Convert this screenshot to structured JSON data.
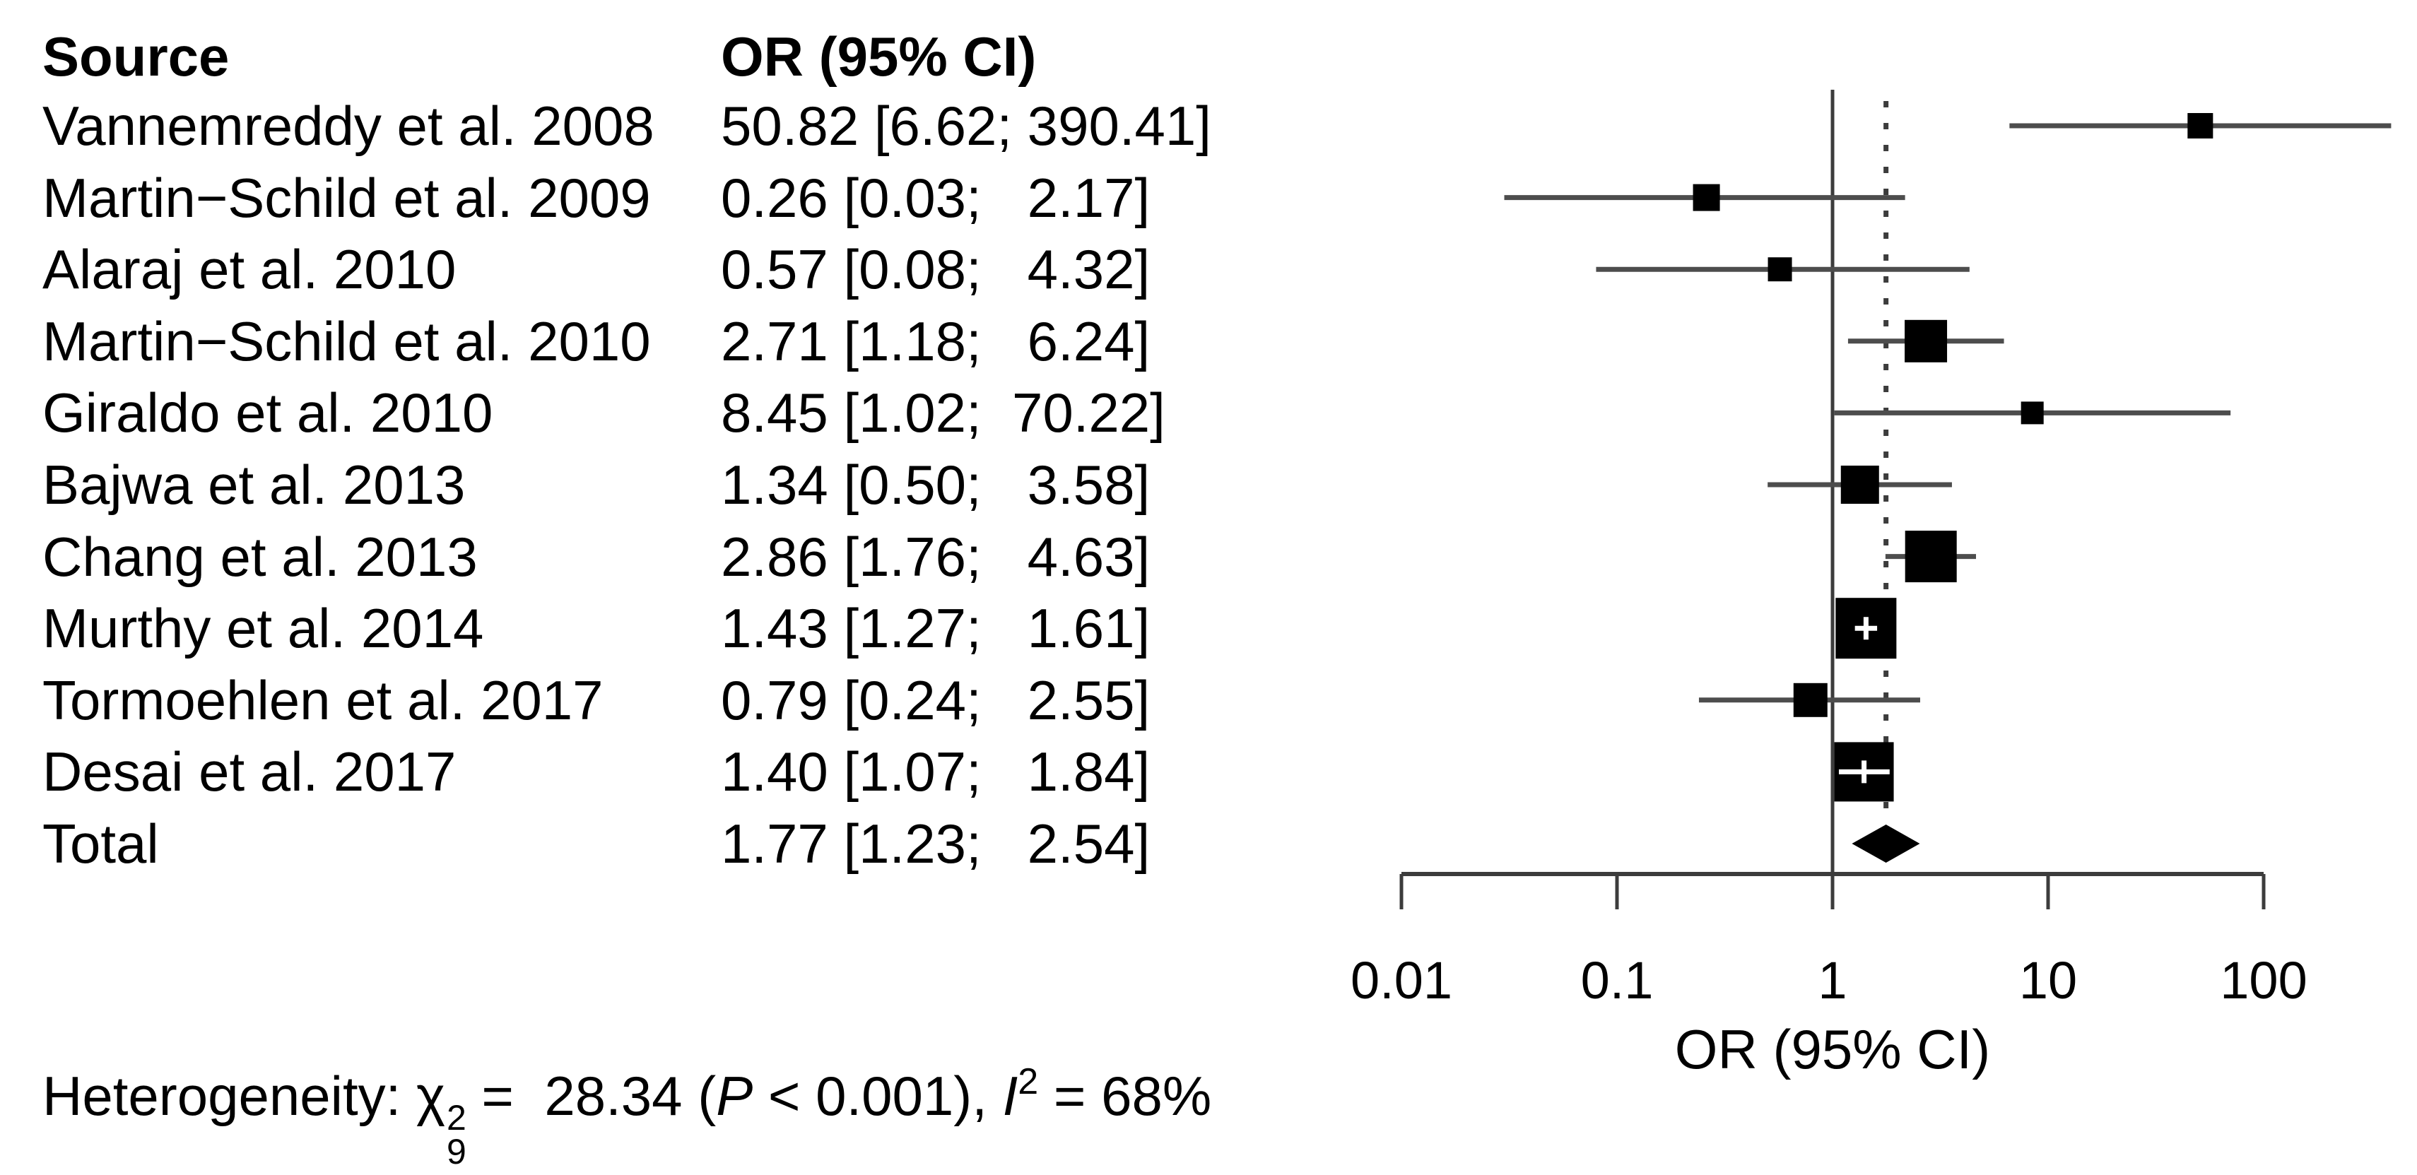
{
  "table": {
    "source_header": "Source",
    "or_header": "OR (95% CI)"
  },
  "chart_data": {
    "type": "scatter",
    "subtype": "forest-plot",
    "title": "",
    "xlabel": "OR (95% CI)",
    "x_scale": "log10",
    "x_range": [
      0.01,
      100
    ],
    "grid": false,
    "ref_line_value": 1,
    "summary_dotted_line_value": 1.77,
    "x_ticks": [
      {
        "label": "0.01",
        "value": 0.01
      },
      {
        "label": "0.1",
        "value": 0.1
      },
      {
        "label": "1",
        "value": 1
      },
      {
        "label": "10",
        "value": 10
      },
      {
        "label": "100",
        "value": 100
      }
    ],
    "studies": [
      {
        "name": "Vannemreddy et al. 2008",
        "display": "50.82 [6.62; 390.41]",
        "or": 50.82,
        "low": 6.62,
        "high": 390.41,
        "square": 36,
        "ci_inside": false
      },
      {
        "name": "Martin−Schild et al. 2009",
        "display": "0.26 [0.03;   2.17]",
        "or": 0.26,
        "low": 0.03,
        "high": 2.17,
        "square": 38,
        "ci_inside": false
      },
      {
        "name": "Alaraj et al. 2010",
        "display": "0.57 [0.08;   4.32]",
        "or": 0.57,
        "low": 0.08,
        "high": 4.32,
        "square": 34,
        "ci_inside": false
      },
      {
        "name": "Martin−Schild et al. 2010",
        "display": "2.71 [1.18;   6.24]",
        "or": 2.71,
        "low": 1.18,
        "high": 6.24,
        "square": 60,
        "ci_inside": false
      },
      {
        "name": "Giraldo et al. 2010",
        "display": "8.45 [1.02;  70.22]",
        "or": 8.45,
        "low": 1.02,
        "high": 70.22,
        "square": 32,
        "ci_inside": false
      },
      {
        "name": "Bajwa et al. 2013",
        "display": "1.34 [0.50;   3.58]",
        "or": 1.34,
        "low": 0.5,
        "high": 3.58,
        "square": 54,
        "ci_inside": false
      },
      {
        "name": "Chang et al. 2013",
        "display": "2.86 [1.76;   4.63]",
        "or": 2.86,
        "low": 1.76,
        "high": 4.63,
        "square": 73,
        "ci_inside": false
      },
      {
        "name": "Murthy et al. 2014",
        "display": "1.43 [1.27;   1.61]",
        "or": 1.43,
        "low": 1.27,
        "high": 1.61,
        "square": 86,
        "ci_inside": true
      },
      {
        "name": "Tormoehlen et al. 2017",
        "display": "0.79 [0.24;   2.55]",
        "or": 0.79,
        "low": 0.24,
        "high": 2.55,
        "square": 48,
        "ci_inside": false
      },
      {
        "name": "Desai et al. 2017",
        "display": "1.40 [1.07;   1.84]",
        "or": 1.4,
        "low": 1.07,
        "high": 1.84,
        "square": 84,
        "ci_inside": true
      }
    ],
    "total": {
      "name": "Total",
      "display": "1.77 [1.23;   2.54]",
      "or": 1.77,
      "low": 1.23,
      "high": 2.54
    }
  },
  "heterogeneity": {
    "label": "Heterogeneity: ",
    "chi": "χ",
    "chi_sup": "2",
    "chi_sub": "9",
    "eq": " =  ",
    "value": "28.34",
    "open": " (",
    "p": "P",
    "p_tail": " < 0.001), ",
    "i": "I",
    "i_sup": "2",
    "i_tail": " = 68%"
  },
  "colors": {
    "ci_line": "#4d4d4d",
    "ref_line": "#3c3c3c",
    "axis": "#3c3c3c",
    "marker": "#000000",
    "overlay": "#ffffff",
    "text": "#000000"
  }
}
